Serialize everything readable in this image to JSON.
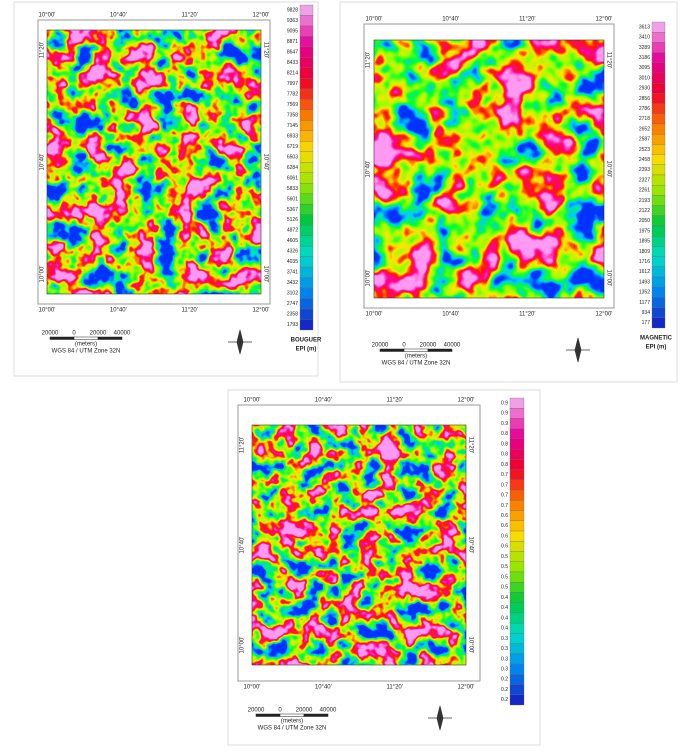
{
  "panels": [
    {
      "top_ticks": [
        "10°00'",
        "10°40'",
        "11°20'",
        "12°00'"
      ],
      "bottom_ticks": [
        "10°00'",
        "10°40'",
        "11°20'",
        "12°00'"
      ],
      "left_ticks": [
        "11°20'",
        "10°40'",
        "10°00'"
      ],
      "right_ticks": [
        "11°20'",
        "10°40'",
        "10°00'"
      ],
      "legend": {
        "labels": [
          "9828",
          "9363",
          "9095",
          "8871",
          "8647",
          "8433",
          "8214",
          "7997",
          "7782",
          "7569",
          "7358",
          "7145",
          "6933",
          "6719",
          "6503",
          "6284",
          "6061",
          "5833",
          "5601",
          "5367",
          "5126",
          "4872",
          "4605",
          "4326",
          "4035",
          "3741",
          "3432",
          "3102",
          "2747",
          "2358",
          "1793"
        ],
        "title": "BOUGUER",
        "unit": "EPI (m)"
      },
      "scale": {
        "labels": [
          "20000",
          "0",
          "20000",
          "40000"
        ],
        "unit": "(meters)",
        "projection": "WGS 84 / UTM Zone 32N"
      }
    },
    {
      "top_ticks": [
        "10°00'",
        "10°40'",
        "11°20'",
        "12°00'"
      ],
      "bottom_ticks": [
        "10°00'",
        "10°40'",
        "11°20'",
        "12°00'"
      ],
      "left_ticks": [
        "11°20'",
        "10°40'",
        "10°00'"
      ],
      "right_ticks": [
        "11°20'",
        "10°40'",
        "10°00'"
      ],
      "legend": {
        "labels": [
          "3613",
          "3410",
          "3289",
          "3186",
          "3095",
          "3010",
          "2930",
          "2856",
          "2786",
          "2718",
          "2652",
          "2587",
          "2523",
          "2458",
          "2393",
          "2327",
          "2261",
          "2193",
          "2122",
          "2050",
          "1975",
          "1895",
          "1809",
          "1716",
          "1612",
          "1493",
          "1352",
          "1177",
          "934",
          "177"
        ],
        "title": "MAGNETIC",
        "unit": "EPI (m)"
      },
      "scale": {
        "labels": [
          "20000",
          "0",
          "20000",
          "40000"
        ],
        "unit": "(meters)",
        "projection": "WGS 84 / UTM Zone 32N"
      }
    },
    {
      "top_ticks": [
        "10°00'",
        "10°40'",
        "11°20'",
        "12°00'"
      ],
      "bottom_ticks": [
        "10°00'",
        "10°40'",
        "11°20'",
        "12°00'"
      ],
      "left_ticks": [
        "11°20'",
        "10°40'",
        "10°00'"
      ],
      "right_ticks": [
        "11°20'",
        "10°40'",
        "10°00'"
      ],
      "legend": {
        "labels": [
          "0.9",
          "0.9",
          "0.9",
          "0.8",
          "0.8",
          "0.8",
          "0.8",
          "0.7",
          "0.7",
          "0.7",
          "0.7",
          "0.6",
          "0.6",
          "0.6",
          "0.6",
          "0.5",
          "0.5",
          "0.5",
          "0.5",
          "0.4",
          "0.4",
          "0.4",
          "0.4",
          "0.3",
          "0.3",
          "0.3",
          "0.3",
          "0.2",
          "0.2",
          "0.2"
        ]
      },
      "scale": {
        "labels": [
          "20000",
          "0",
          "20000",
          "40000"
        ],
        "unit": "(meters)",
        "projection": "WGS 84 / UTM Zone 32N"
      }
    }
  ]
}
